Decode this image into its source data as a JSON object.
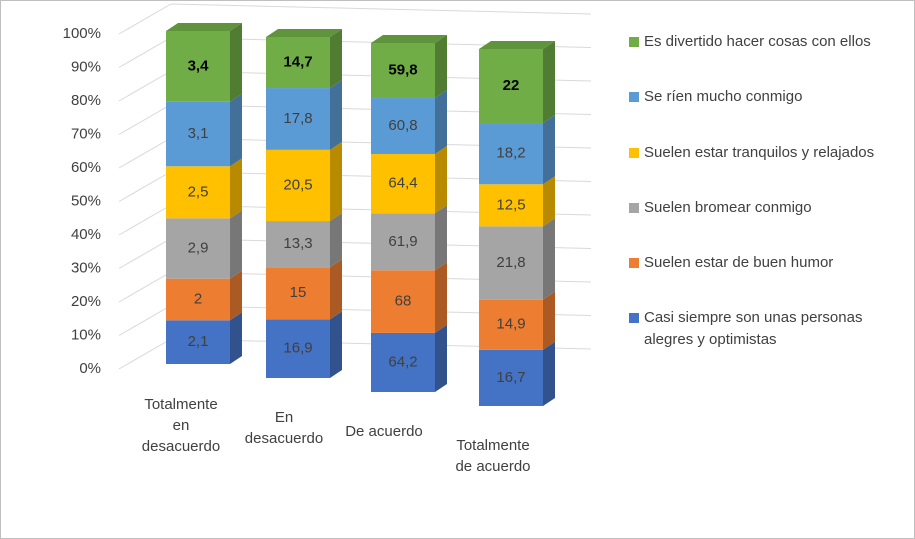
{
  "chart_data": {
    "type": "bar3d_stacked_percent",
    "categories": [
      "Totalmente en desacuerdo",
      "En desacuerdo",
      "De acuerdo",
      "Totalmente de acuerdo"
    ],
    "ylim": [
      0,
      100
    ],
    "yticks": [
      {
        "value": 0,
        "label": "0%"
      },
      {
        "value": 10,
        "label": "10%"
      },
      {
        "value": 20,
        "label": "20%"
      },
      {
        "value": 30,
        "label": "30%"
      },
      {
        "value": 40,
        "label": "40%"
      },
      {
        "value": 50,
        "label": "50%"
      },
      {
        "value": 60,
        "label": "60%"
      },
      {
        "value": 70,
        "label": "70%"
      },
      {
        "value": 80,
        "label": "80%"
      },
      {
        "value": 90,
        "label": "90%"
      },
      {
        "value": 100,
        "label": "100%"
      }
    ],
    "grid": true,
    "legend": "right",
    "series": [
      {
        "name": "Casi siempre son unas personas alegres y optimistas",
        "color": "#4472c4",
        "values": [
          2.1,
          16.9,
          64.2,
          16.7
        ],
        "value_labels": [
          "2,1",
          "16,9",
          "64,2",
          "16,7"
        ]
      },
      {
        "name": "Suelen estar de buen humor",
        "color": "#ed7d31",
        "values": [
          2,
          15,
          68,
          14.9
        ],
        "value_labels": [
          "2",
          "15",
          "68",
          "14,9"
        ]
      },
      {
        "name": "Suelen bromear conmigo",
        "color": "#a5a5a5",
        "values": [
          2.9,
          13.3,
          61.9,
          21.8
        ],
        "value_labels": [
          "2,9",
          "13,3",
          "61,9",
          "21,8"
        ]
      },
      {
        "name": "Suelen estar tranquilos y relajados",
        "color": "#ffc000",
        "values": [
          2.5,
          20.5,
          64.4,
          12.5
        ],
        "value_labels": [
          "2,5",
          "20,5",
          "64,4",
          "12,5"
        ]
      },
      {
        "name": "Se ríen mucho conmigo",
        "color": "#5b9bd5",
        "values": [
          3.1,
          17.8,
          60.8,
          18.2
        ],
        "value_labels": [
          "3,1",
          "17,8",
          "60,8",
          "18,2"
        ]
      },
      {
        "name": "Es divertido hacer cosas con ellos",
        "color": "#70ad47",
        "values": [
          3.4,
          14.7,
          59.8,
          22
        ],
        "value_labels": [
          "3,4",
          "14,7",
          "59,8",
          "22"
        ]
      }
    ]
  }
}
